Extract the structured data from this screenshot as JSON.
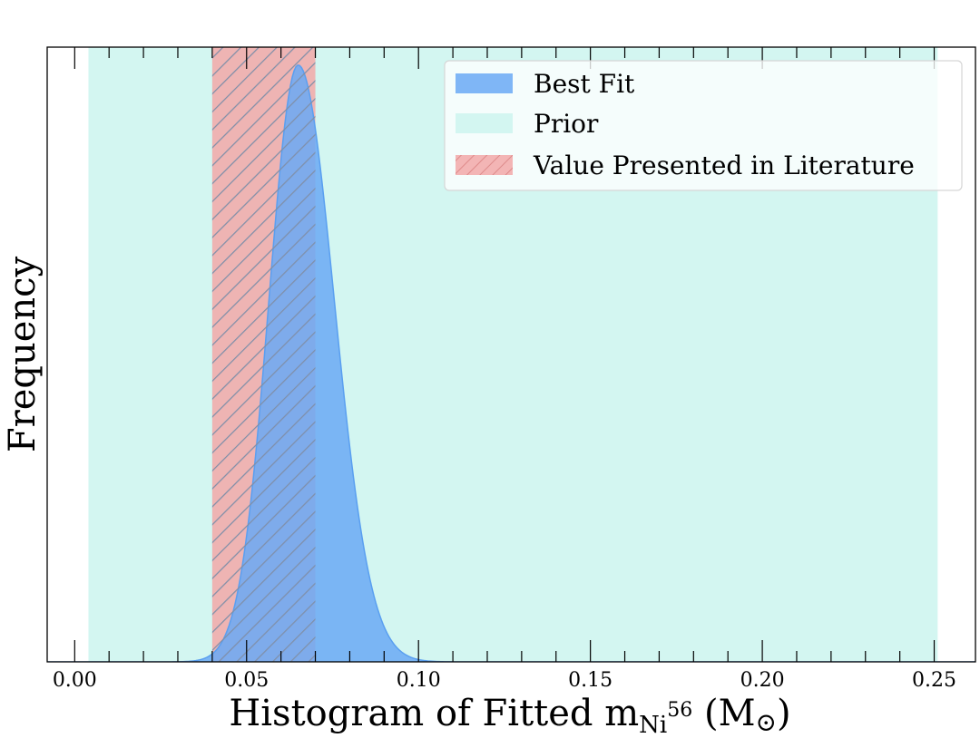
{
  "chart_data": {
    "type": "area",
    "xlabel": "Histogram of Fitted m",
    "xlabel_sub": "Ni",
    "xlabel_sup": "56",
    "xlabel_unit_open": " (M",
    "xlabel_unit_sub": "⊙",
    "xlabel_unit_close": ")",
    "ylabel": "Frequency",
    "xlim": [
      -0.008,
      0.262
    ],
    "ylim": [
      0,
      1.03
    ],
    "x_ticks": [
      0.0,
      0.05,
      0.1,
      0.15,
      0.2,
      0.25
    ],
    "x_tick_labels": [
      "0.00",
      "0.05",
      "0.10",
      "0.15",
      "0.20",
      "0.25"
    ],
    "x_minor_step": 0.01,
    "grid": false,
    "legend_position": "top-right",
    "series": [
      {
        "name": "Best Fit",
        "kind": "gaussian",
        "peak_x": 0.065,
        "sigma_left": 0.0085,
        "sigma_right": 0.0105,
        "peak_y": 1.0,
        "color": "#6aa9f4"
      },
      {
        "name": "Prior",
        "kind": "band",
        "x_range": [
          0.004,
          0.251
        ],
        "color": "#d3f6f1"
      },
      {
        "name": "Value Presented in Literature",
        "kind": "hatched-band",
        "x_range": [
          0.04,
          0.07
        ],
        "color": "#f2a8a8",
        "hatch_color": "#7f8fa8"
      }
    ]
  }
}
